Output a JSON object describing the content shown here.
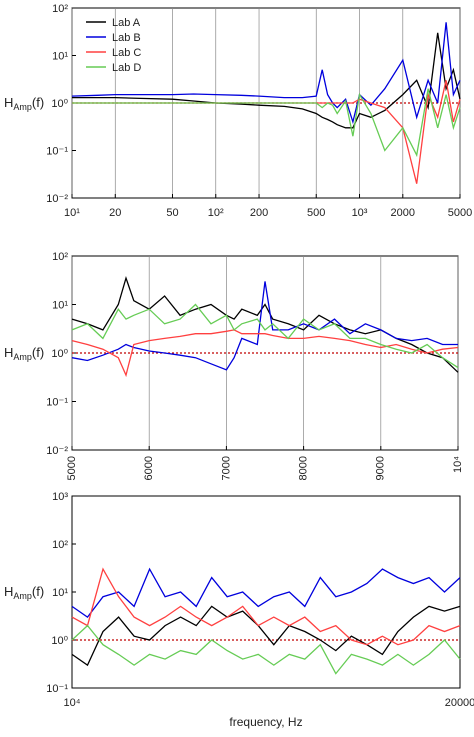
{
  "chart_data": [
    {
      "type": "line",
      "ylabel": {
        "main": "H",
        "sub": "Amp",
        "tail": "(f)"
      },
      "log_x": true,
      "log_y": true,
      "grid": true,
      "legend": "upper left",
      "xlim": [
        10,
        5000
      ],
      "xticks": [
        {
          "value": 10,
          "label": "10¹"
        },
        20,
        50,
        {
          "value": 100,
          "label": "10²"
        },
        200,
        500,
        {
          "value": 1000,
          "label": "10³"
        },
        2000,
        5000
      ],
      "ylim": [
        0.01,
        100
      ],
      "yticks": [
        {
          "value": 0.01,
          "label": "10⁻²"
        },
        {
          "value": 0.1,
          "label": "10⁻¹"
        },
        {
          "value": 1,
          "label": "10⁰"
        },
        {
          "value": 10,
          "label": "10¹"
        },
        {
          "value": 100,
          "label": "10²"
        }
      ],
      "reference": 1,
      "reference_color": "#c00000",
      "x": [
        10,
        15,
        20,
        30,
        50,
        70,
        100,
        150,
        200,
        300,
        400,
        500,
        550,
        600,
        650,
        700,
        800,
        900,
        1000,
        1200,
        1500,
        2000,
        2500,
        3000,
        3500,
        4000,
        4500,
        5000
      ],
      "series": [
        {
          "name": "Lab A",
          "color": "#000000",
          "values": [
            1.3,
            1.3,
            1.3,
            1.25,
            1.2,
            1.1,
            1.0,
            0.95,
            0.9,
            0.85,
            0.75,
            0.6,
            0.5,
            0.45,
            0.4,
            0.35,
            0.3,
            0.3,
            0.6,
            0.5,
            0.7,
            1.5,
            3,
            0.8,
            30,
            2,
            5,
            1.2
          ]
        },
        {
          "name": "Lab B",
          "color": "#0000dd",
          "values": [
            1.4,
            1.45,
            1.5,
            1.5,
            1.5,
            1.55,
            1.5,
            1.45,
            1.4,
            1.3,
            1.3,
            1.4,
            5,
            1.5,
            1.0,
            0.8,
            1.2,
            0.4,
            1.5,
            0.9,
            2,
            8,
            0.5,
            3,
            1,
            50,
            1.5,
            3
          ]
        },
        {
          "name": "Lab C",
          "color": "#ff4040",
          "values": [
            1.0,
            1.0,
            1.0,
            1.0,
            1.0,
            1.0,
            1.0,
            1.0,
            1.0,
            1.0,
            1.0,
            1.0,
            1.0,
            1.0,
            1.0,
            1.0,
            1.0,
            1.0,
            1.2,
            1.0,
            0.8,
            0.3,
            0.02,
            1.5,
            0.5,
            3,
            0.4,
            1.2
          ]
        },
        {
          "name": "Lab D",
          "color": "#66cc55",
          "values": [
            1.0,
            1.0,
            1.0,
            1.0,
            1.0,
            1.0,
            1.0,
            1.0,
            1.0,
            1.0,
            1.0,
            1.0,
            0.8,
            1.0,
            0.9,
            0.6,
            1.1,
            0.2,
            1.5,
            0.6,
            0.1,
            0.3,
            0.08,
            2,
            0.3,
            1.5,
            0.3,
            0.8
          ]
        }
      ]
    },
    {
      "type": "line",
      "ylabel": {
        "main": "H",
        "sub": "Amp",
        "tail": "(f)"
      },
      "log_x": false,
      "log_y": true,
      "grid": true,
      "xtick_rotation": 90,
      "xlim": [
        5000,
        10000
      ],
      "xticks": [
        5000,
        6000,
        7000,
        8000,
        9000,
        {
          "value": 10000,
          "label": "10⁴"
        }
      ],
      "ylim": [
        0.01,
        100
      ],
      "yticks": [
        {
          "value": 0.01,
          "label": "10⁻²"
        },
        {
          "value": 0.1,
          "label": "10⁻¹"
        },
        {
          "value": 1,
          "label": "10⁰"
        },
        {
          "value": 10,
          "label": "10¹"
        },
        {
          "value": 100,
          "label": "10²"
        }
      ],
      "reference": 1,
      "reference_color": "#c00000",
      "x": [
        5000,
        5200,
        5400,
        5600,
        5700,
        5800,
        6000,
        6200,
        6400,
        6600,
        6800,
        7000,
        7100,
        7200,
        7400,
        7500,
        7600,
        7800,
        8000,
        8200,
        8400,
        8600,
        8800,
        9000,
        9200,
        9400,
        9600,
        9800,
        10000
      ],
      "series": [
        {
          "color": "#000000",
          "values": [
            5,
            4,
            3,
            10,
            35,
            12,
            8,
            15,
            6,
            8,
            10,
            6,
            5,
            8,
            6,
            10,
            5,
            4,
            3,
            6,
            4,
            3,
            2.5,
            3,
            2,
            1.5,
            1,
            0.8,
            0.4
          ]
        },
        {
          "color": "#0000dd",
          "values": [
            0.8,
            0.7,
            0.9,
            1.2,
            1.5,
            1.3,
            1.1,
            1.0,
            0.9,
            0.8,
            0.6,
            0.45,
            0.8,
            2,
            1.5,
            30,
            3,
            3,
            4,
            3,
            5,
            2.5,
            4,
            3,
            2,
            1.8,
            2,
            1.5,
            1.5
          ]
        },
        {
          "color": "#ff4040",
          "values": [
            1.8,
            1.5,
            1.2,
            0.8,
            0.35,
            1.5,
            1.8,
            2,
            2.2,
            2.5,
            2.5,
            2.8,
            3,
            2.5,
            2.5,
            2.5,
            2.3,
            2,
            2,
            2.2,
            2,
            1.8,
            1.5,
            1.3,
            1.5,
            1.2,
            1,
            1.2,
            1.3
          ]
        },
        {
          "color": "#66cc55",
          "values": [
            3,
            4,
            2,
            8,
            5,
            6,
            8,
            4,
            5,
            10,
            4,
            6,
            3,
            4,
            5,
            3,
            4,
            2,
            5,
            3,
            4,
            2,
            2,
            1.5,
            1.2,
            1,
            1.5,
            0.8,
            0.5
          ]
        }
      ]
    },
    {
      "type": "line",
      "ylabel": {
        "main": "H",
        "sub": "Amp",
        "tail": "(f)"
      },
      "xlabel": "frequency, Hz",
      "log_x": false,
      "log_y": true,
      "grid": false,
      "xlim": [
        10000,
        20000
      ],
      "xticks": [
        {
          "value": 10000,
          "label": "10⁴"
        },
        20000
      ],
      "ylim": [
        0.1,
        1000
      ],
      "yticks": [
        {
          "value": 0.1,
          "label": "10⁻¹"
        },
        {
          "value": 1,
          "label": "10⁰"
        },
        {
          "value": 10,
          "label": "10¹"
        },
        {
          "value": 100,
          "label": "10²"
        },
        {
          "value": 1000,
          "label": "10³"
        }
      ],
      "reference": 1,
      "reference_color": "#c00000",
      "x": [
        10000,
        10400,
        10800,
        11200,
        11600,
        12000,
        12400,
        12800,
        13200,
        13600,
        14000,
        14400,
        14800,
        15200,
        15600,
        16000,
        16400,
        16800,
        17200,
        17600,
        18000,
        18400,
        18800,
        19200,
        19600,
        20000
      ],
      "series": [
        {
          "color": "#000000",
          "values": [
            0.5,
            0.3,
            1.5,
            3,
            1.2,
            1,
            2,
            3,
            2,
            5,
            3,
            4,
            2,
            0.8,
            2,
            1.5,
            1,
            0.6,
            1.2,
            0.8,
            0.5,
            1.5,
            3,
            5,
            4,
            5
          ]
        },
        {
          "color": "#0000dd",
          "values": [
            5,
            3,
            8,
            10,
            5,
            30,
            8,
            10,
            5,
            20,
            8,
            10,
            5,
            8,
            10,
            5,
            20,
            8,
            10,
            15,
            30,
            20,
            15,
            20,
            10,
            20
          ]
        },
        {
          "color": "#ff4040",
          "values": [
            3,
            2,
            30,
            8,
            3,
            2,
            3,
            5,
            3,
            2,
            3,
            5,
            2,
            3,
            2,
            3,
            1.5,
            2,
            1,
            0.8,
            1.2,
            0.8,
            1,
            2,
            1.5,
            2
          ]
        },
        {
          "color": "#66cc55",
          "values": [
            1,
            2,
            0.8,
            0.5,
            0.3,
            0.5,
            0.4,
            0.6,
            0.5,
            1,
            0.6,
            0.4,
            0.5,
            0.3,
            0.5,
            0.4,
            0.8,
            0.2,
            0.5,
            0.4,
            0.3,
            0.5,
            0.3,
            0.5,
            1,
            0.4
          ]
        }
      ]
    }
  ]
}
